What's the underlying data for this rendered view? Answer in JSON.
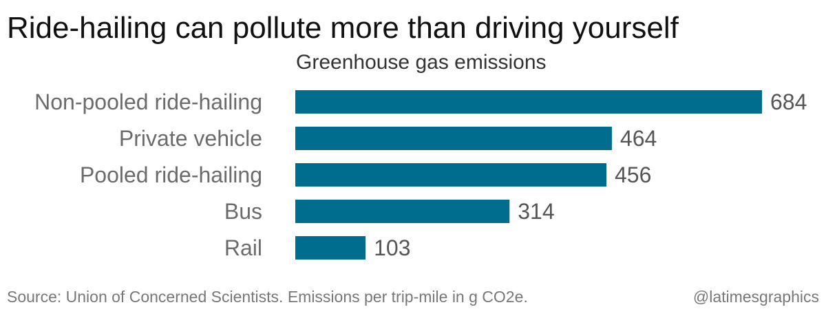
{
  "header": {
    "title": "Ride-hailing can pollute more than driving yourself",
    "subtitle": "Greenhouse gas emissions"
  },
  "footer": {
    "source": "Source: Union of Concerned Scientists. Emissions per trip-mile in g CO2e.",
    "credit": "@latimesgraphics"
  },
  "colors": {
    "bar": "#006d8f"
  },
  "chart_data": {
    "type": "bar",
    "orientation": "horizontal",
    "title": "Ride-hailing can pollute more than driving yourself",
    "subtitle": "Greenhouse gas emissions",
    "categories": [
      "Non-pooled ride-hailing",
      "Private vehicle",
      "Pooled ride-hailing",
      "Bus",
      "Rail"
    ],
    "values": [
      684,
      464,
      456,
      314,
      103
    ],
    "xlim": [
      0,
      684
    ],
    "grid": false,
    "legend": "none"
  }
}
